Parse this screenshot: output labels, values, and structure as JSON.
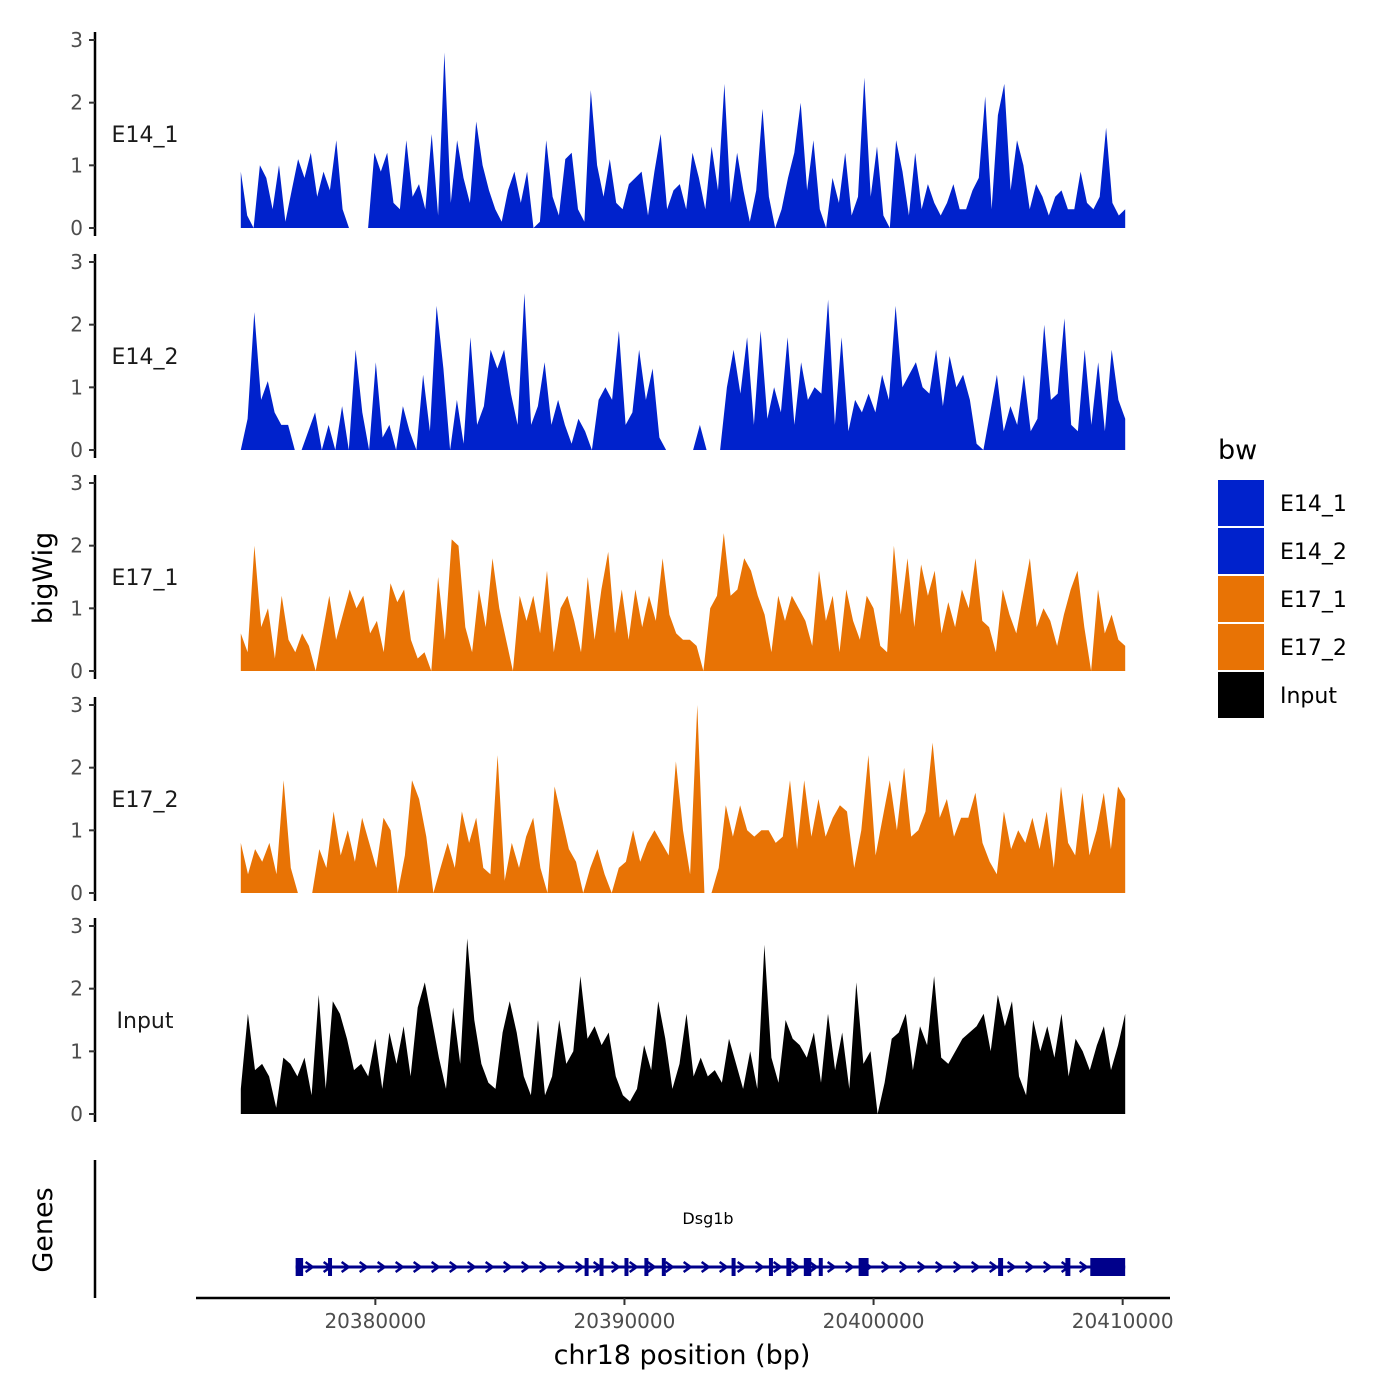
{
  "chart_data": {
    "type": "area",
    "ylabel": "bigWig",
    "xlabel": "chr18 position (bp)",
    "region": {
      "chrom": "chr18",
      "start": 20374600,
      "end": 20410100
    },
    "xlim": [
      20372800,
      20411900
    ],
    "x_ticks": [
      20380000,
      20390000,
      20400000,
      20410000
    ],
    "x_tick_labels": [
      "20380000",
      "20390000",
      "20400000",
      "20410000"
    ],
    "ylim": [
      0,
      3
    ],
    "y_ticks": [
      0,
      1,
      2,
      3
    ],
    "y_tick_labels": [
      "0",
      "1",
      "2",
      "3"
    ],
    "legend": {
      "title": "bw",
      "position": "right"
    },
    "series": [
      {
        "name": "E14_1",
        "label": "E14_1",
        "color": "#0022cc",
        "values": [
          0.9,
          0.2,
          0.0,
          1.0,
          0.8,
          0.3,
          1.0,
          0.1,
          0.6,
          1.1,
          0.8,
          1.2,
          0.5,
          0.9,
          0.6,
          1.4,
          0.3,
          0.0,
          0.0,
          0.0,
          0.0,
          1.2,
          0.9,
          1.2,
          0.4,
          0.3,
          1.4,
          0.5,
          0.7,
          0.3,
          1.5,
          0.2,
          2.8,
          0.4,
          1.4,
          0.8,
          0.4,
          1.7,
          1.0,
          0.6,
          0.3,
          0.1,
          0.6,
          0.9,
          0.4,
          0.9,
          0.0,
          0.1,
          1.4,
          0.5,
          0.2,
          1.1,
          1.2,
          0.3,
          0.1,
          2.2,
          1.0,
          0.5,
          1.1,
          0.4,
          0.3,
          0.7,
          0.8,
          0.9,
          0.2,
          0.9,
          1.5,
          0.3,
          0.6,
          0.7,
          0.3,
          1.2,
          0.8,
          0.3,
          1.3,
          0.6,
          2.3,
          0.4,
          1.2,
          0.6,
          0.1,
          0.6,
          1.9,
          0.5,
          0.0,
          0.3,
          0.8,
          1.2,
          2.0,
          0.6,
          1.4,
          0.3,
          0.0,
          0.8,
          0.4,
          1.2,
          0.2,
          0.5,
          2.4,
          0.5,
          1.3,
          0.2,
          0.0,
          1.4,
          0.9,
          0.2,
          1.2,
          0.3,
          0.7,
          0.4,
          0.2,
          0.4,
          0.7,
          0.3,
          0.3,
          0.6,
          0.8,
          2.1,
          0.3,
          1.8,
          2.3,
          0.6,
          1.4,
          1.0,
          0.3,
          0.7,
          0.5,
          0.2,
          0.5,
          0.6,
          0.3,
          0.3,
          0.9,
          0.4,
          0.3,
          0.5,
          1.6,
          0.4,
          0.2,
          0.3
        ]
      },
      {
        "name": "E14_2",
        "label": "E14_2",
        "color": "#0022cc",
        "values": [
          0.0,
          0.5,
          2.2,
          0.8,
          1.1,
          0.6,
          0.4,
          0.4,
          0.0,
          0.0,
          0.3,
          0.6,
          0.0,
          0.4,
          0.0,
          0.7,
          0.0,
          1.6,
          0.6,
          0.0,
          1.4,
          0.2,
          0.4,
          0.0,
          0.7,
          0.3,
          0.0,
          1.2,
          0.3,
          2.3,
          1.3,
          0.0,
          0.8,
          0.1,
          1.8,
          0.4,
          0.7,
          1.6,
          1.3,
          1.6,
          0.9,
          0.4,
          2.5,
          0.4,
          0.7,
          1.4,
          0.4,
          0.8,
          0.4,
          0.1,
          0.5,
          0.3,
          0.0,
          0.8,
          1.0,
          0.8,
          1.9,
          0.4,
          0.6,
          1.6,
          0.8,
          1.3,
          0.2,
          0.0,
          0.0,
          0.0,
          0.0,
          0.0,
          0.4,
          0.0,
          0.0,
          0.0,
          1.0,
          1.6,
          0.9,
          1.8,
          0.4,
          1.9,
          0.5,
          1.0,
          0.6,
          1.8,
          0.4,
          1.4,
          0.8,
          1.0,
          0.9,
          2.4,
          0.4,
          1.8,
          0.3,
          0.8,
          0.6,
          0.9,
          0.6,
          1.2,
          0.8,
          2.3,
          1.0,
          1.2,
          1.4,
          1.0,
          0.9,
          1.6,
          0.7,
          1.5,
          1.0,
          1.2,
          0.8,
          0.1,
          0.0,
          0.6,
          1.2,
          0.3,
          0.7,
          0.4,
          1.2,
          0.3,
          0.5,
          2.0,
          0.8,
          0.9,
          2.1,
          0.4,
          0.3,
          1.6,
          0.4,
          1.4,
          0.3,
          1.6,
          0.8,
          0.5
        ]
      },
      {
        "name": "E17_1",
        "label": "E17_1",
        "color": "#e87305",
        "values": [
          0.6,
          0.3,
          2.0,
          0.7,
          1.0,
          0.2,
          1.2,
          0.5,
          0.3,
          0.6,
          0.4,
          0.0,
          0.6,
          1.2,
          0.5,
          0.9,
          1.3,
          1.0,
          1.2,
          0.6,
          0.8,
          0.3,
          1.4,
          1.1,
          1.3,
          0.5,
          0.2,
          0.3,
          0.0,
          1.5,
          0.5,
          2.1,
          2.0,
          0.7,
          0.3,
          1.3,
          0.7,
          1.8,
          1.0,
          0.5,
          0.0,
          1.2,
          0.8,
          1.2,
          0.6,
          1.6,
          0.3,
          1.0,
          1.2,
          0.8,
          0.3,
          1.5,
          0.5,
          1.3,
          1.9,
          0.6,
          1.3,
          0.5,
          1.3,
          0.7,
          1.2,
          0.8,
          1.8,
          0.9,
          0.6,
          0.5,
          0.5,
          0.4,
          0.0,
          1.0,
          1.2,
          2.2,
          1.2,
          1.3,
          1.8,
          1.6,
          1.2,
          0.9,
          0.3,
          1.2,
          0.8,
          1.2,
          1.0,
          0.8,
          0.4,
          1.6,
          0.8,
          1.2,
          0.3,
          1.3,
          0.8,
          0.5,
          1.2,
          1.0,
          0.4,
          0.3,
          2.0,
          0.9,
          1.8,
          0.7,
          1.7,
          1.2,
          1.6,
          0.6,
          1.1,
          0.7,
          1.3,
          1.0,
          1.8,
          0.8,
          0.7,
          0.3,
          1.3,
          0.9,
          0.6,
          1.2,
          1.8,
          0.7,
          1.0,
          0.8,
          0.4,
          0.9,
          1.3,
          1.6,
          0.7,
          0.0,
          1.3,
          0.6,
          0.9,
          0.5,
          0.4
        ]
      },
      {
        "name": "E17_2",
        "label": "E17_2",
        "color": "#e87305",
        "values": [
          0.8,
          0.3,
          0.7,
          0.5,
          0.8,
          0.3,
          1.8,
          0.4,
          0.0,
          0.0,
          0.0,
          0.7,
          0.4,
          1.3,
          0.6,
          1.0,
          0.5,
          1.2,
          0.8,
          0.4,
          1.2,
          1.0,
          0.0,
          0.6,
          1.8,
          1.5,
          0.9,
          0.0,
          0.4,
          0.8,
          0.4,
          1.3,
          0.8,
          1.2,
          0.4,
          0.3,
          2.2,
          0.2,
          0.8,
          0.4,
          0.9,
          1.2,
          0.4,
          0.0,
          1.7,
          1.2,
          0.7,
          0.5,
          0.0,
          0.4,
          0.7,
          0.3,
          0.0,
          0.4,
          0.5,
          1.0,
          0.5,
          0.8,
          1.0,
          0.8,
          0.6,
          2.1,
          1.0,
          0.3,
          3.0,
          0.0,
          0.0,
          0.4,
          1.4,
          0.9,
          1.4,
          1.0,
          0.9,
          1.0,
          1.0,
          0.8,
          0.9,
          1.8,
          0.7,
          1.8,
          0.9,
          1.5,
          0.9,
          1.2,
          1.4,
          1.3,
          0.4,
          1.0,
          2.2,
          0.6,
          1.2,
          1.8,
          1.0,
          2.0,
          0.9,
          1.0,
          1.3,
          2.4,
          1.2,
          1.5,
          0.9,
          1.2,
          1.2,
          1.6,
          0.8,
          0.5,
          0.3,
          1.3,
          0.7,
          1.0,
          0.8,
          1.2,
          0.7,
          1.3,
          0.4,
          1.7,
          0.8,
          0.6,
          1.6,
          0.6,
          1.0,
          1.6,
          0.7,
          1.7,
          1.5
        ]
      },
      {
        "name": "Input",
        "label": "Input",
        "color": "#000000",
        "values": [
          0.4,
          1.6,
          0.7,
          0.8,
          0.6,
          0.1,
          0.9,
          0.8,
          0.6,
          0.9,
          0.3,
          1.9,
          0.4,
          1.8,
          1.6,
          1.2,
          0.7,
          0.8,
          0.6,
          1.2,
          0.4,
          1.3,
          0.8,
          1.4,
          0.6,
          1.7,
          2.1,
          1.5,
          0.9,
          0.4,
          1.7,
          0.8,
          2.8,
          1.5,
          0.8,
          0.5,
          0.4,
          1.3,
          1.8,
          1.3,
          0.6,
          0.3,
          1.5,
          0.3,
          0.6,
          1.5,
          0.8,
          1.0,
          2.2,
          1.2,
          1.4,
          1.1,
          1.3,
          0.6,
          0.3,
          0.2,
          0.4,
          1.1,
          0.7,
          1.8,
          1.2,
          0.4,
          0.8,
          1.6,
          0.6,
          0.9,
          0.6,
          0.7,
          0.5,
          1.2,
          0.8,
          0.4,
          1.0,
          0.4,
          2.7,
          0.9,
          0.5,
          1.5,
          1.2,
          1.1,
          0.9,
          1.3,
          0.5,
          1.6,
          0.7,
          1.3,
          0.4,
          2.1,
          0.8,
          1.0,
          0.0,
          0.5,
          1.2,
          1.3,
          1.6,
          0.7,
          1.4,
          1.1,
          2.2,
          0.9,
          0.8,
          1.0,
          1.2,
          1.3,
          1.4,
          1.6,
          1.0,
          1.9,
          1.4,
          1.8,
          0.6,
          0.3,
          1.5,
          1.0,
          1.4,
          0.9,
          1.6,
          0.6,
          1.2,
          1.0,
          0.7,
          1.1,
          1.4,
          0.7,
          1.1,
          1.6
        ]
      }
    ],
    "gene_track": {
      "label": "Genes",
      "gene_name": "Dsg1b",
      "start": 20376800,
      "end": 20410100,
      "strand": "+",
      "color": "#00008b",
      "exons": [
        [
          20376800,
          20377100
        ],
        [
          20378100,
          20378200
        ],
        [
          20388400,
          20388500
        ],
        [
          20389000,
          20389100
        ],
        [
          20390000,
          20390100
        ],
        [
          20390800,
          20390900
        ],
        [
          20391500,
          20391600
        ],
        [
          20394300,
          20394400
        ],
        [
          20395800,
          20395900
        ],
        [
          20396500,
          20396700
        ],
        [
          20397200,
          20397500
        ],
        [
          20397800,
          20397900
        ],
        [
          20399400,
          20399800
        ],
        [
          20405000,
          20405200
        ],
        [
          20407700,
          20407900
        ],
        [
          20408700,
          20410100
        ]
      ]
    }
  }
}
